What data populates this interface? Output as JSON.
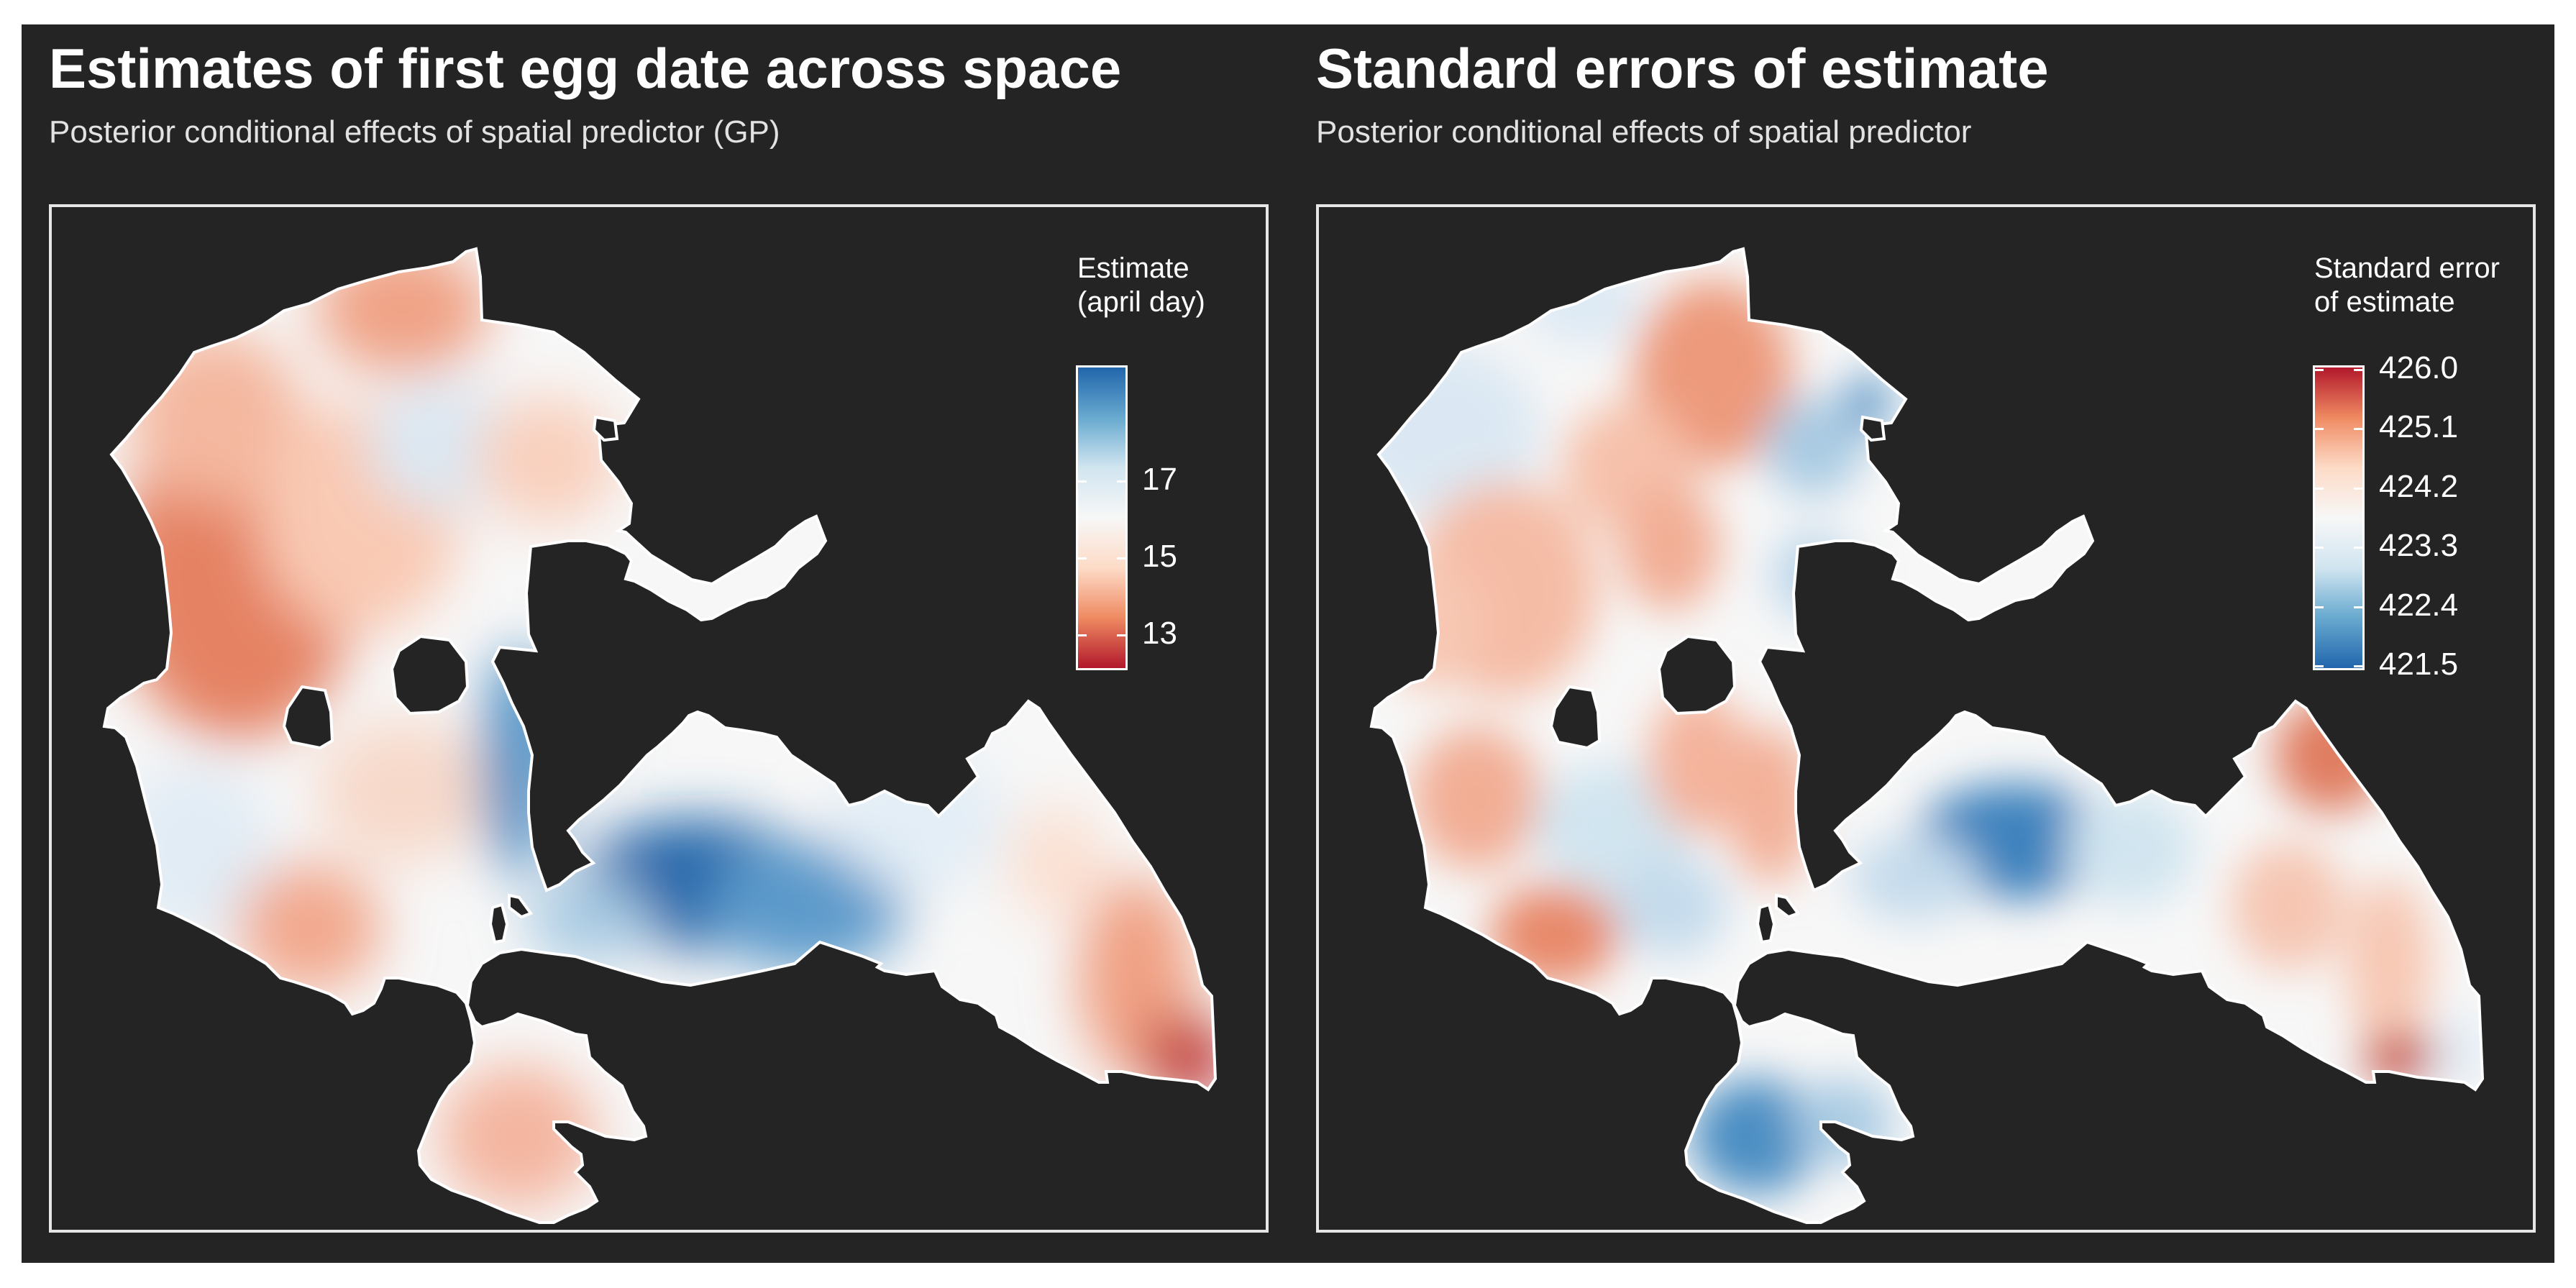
{
  "left": {
    "title": "Estimates of first egg date across space",
    "subtitle": "Posterior conditional effects of spatial predictor (GP)",
    "legend": {
      "title_lines": [
        "Estimate",
        "(april day)"
      ],
      "ticks": [
        {
          "label": "17",
          "value": 17
        },
        {
          "label": "15",
          "value": 15
        },
        {
          "label": "13",
          "value": 13
        }
      ],
      "range": [
        12.2,
        19.9
      ],
      "colors_low_to_high": [
        "#b2182b",
        "#ef8a62",
        "#fddbc7",
        "#f7f7f7",
        "#d1e5f0",
        "#67a9cf",
        "#2166ac"
      ]
    }
  },
  "right": {
    "title": "Standard errors of estimate",
    "subtitle": "Posterior conditional effects of spatial predictor",
    "legend": {
      "title_lines": [
        "Standard error",
        "of estimate"
      ],
      "ticks": [
        {
          "label": "426.0",
          "value": 426.0
        },
        {
          "label": "425.1",
          "value": 425.1
        },
        {
          "label": "424.2",
          "value": 424.2
        },
        {
          "label": "423.3",
          "value": 423.3
        },
        {
          "label": "422.4",
          "value": 422.4
        },
        {
          "label": "421.5",
          "value": 421.5
        }
      ],
      "range": [
        421.5,
        426.0
      ],
      "colors_low_to_high": [
        "#2166ac",
        "#67a9cf",
        "#d1e5f0",
        "#f7f7f7",
        "#fddbc7",
        "#ef8a62",
        "#b2182b"
      ]
    }
  },
  "colors": {
    "background": "#242424",
    "panel_border": "#e6e6e6",
    "text": "#ffffff",
    "outline": "#ffffff",
    "red": "#b2182b",
    "blue": "#2166ac"
  }
}
